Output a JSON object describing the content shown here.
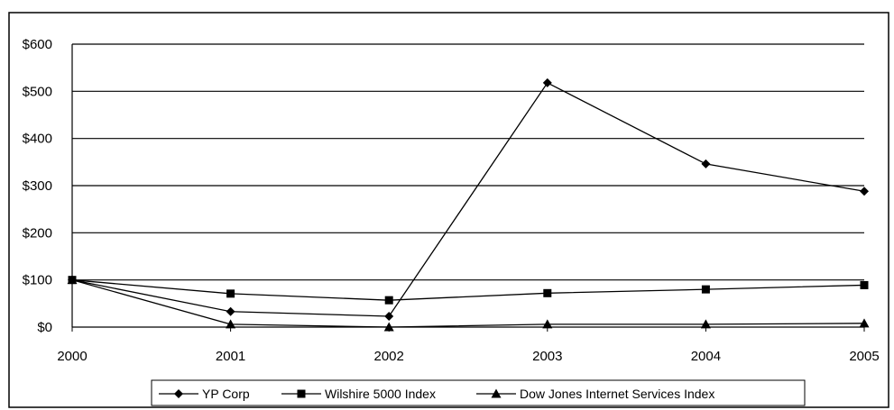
{
  "chart_data": {
    "type": "line",
    "title": "",
    "xlabel": "",
    "ylabel": "",
    "x": [
      2000,
      2001,
      2002,
      2003,
      2004,
      2005
    ],
    "x_tick_labels": [
      "2000",
      "2001",
      "2002",
      "2003",
      "2004",
      "2005"
    ],
    "ylim": [
      0,
      600
    ],
    "y_ticks": [
      0,
      100,
      200,
      300,
      400,
      500,
      600
    ],
    "y_tick_labels": [
      "$0",
      "$100",
      "$200",
      "$300",
      "$400",
      "$500",
      "$600"
    ],
    "grid": "horizontal",
    "legend_position": "bottom",
    "series": [
      {
        "name": "YP Corp",
        "marker": "diamond",
        "values": [
          100,
          33,
          23,
          518,
          346,
          288
        ]
      },
      {
        "name": "Wilshire 5000 Index",
        "marker": "square",
        "values": [
          100,
          71,
          57,
          72,
          80,
          89
        ]
      },
      {
        "name": "Dow Jones Internet  Services Index",
        "marker": "triangle",
        "values": [
          100,
          6,
          0,
          6,
          6,
          8
        ]
      }
    ],
    "colors": {
      "line": "#000000",
      "grid": "#000000",
      "background": "#ffffff"
    }
  }
}
